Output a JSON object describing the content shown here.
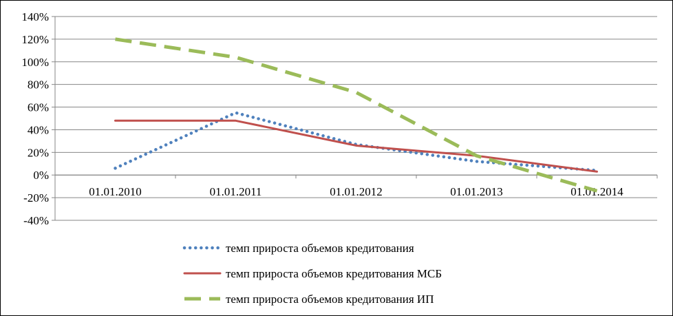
{
  "chart_data": {
    "type": "line",
    "categories": [
      "01.01.2010",
      "01.01.2011",
      "01.01.2012",
      "01.01.2013",
      "01.01.2014"
    ],
    "ylim": [
      -40,
      140
    ],
    "yticks": [
      "-40%",
      "-20%",
      "0%",
      "20%",
      "40%",
      "60%",
      "80%",
      "100%",
      "120%",
      "140%"
    ],
    "grid": true,
    "legend_position": "bottom",
    "series": [
      {
        "name": "темп прироста объемов кредитования",
        "style": "dotted",
        "color": "#4F81BD",
        "values": [
          6,
          55,
          27,
          12,
          4
        ]
      },
      {
        "name": "темп прироста объемов кредитования МСБ",
        "style": "solid",
        "color": "#C0504D",
        "values": [
          48,
          48,
          26,
          17,
          3
        ]
      },
      {
        "name": "темп прироста объемов кредитования ИП",
        "style": "dashed",
        "color": "#9BBB59",
        "values": [
          120,
          104,
          73,
          17,
          -14
        ]
      }
    ]
  }
}
